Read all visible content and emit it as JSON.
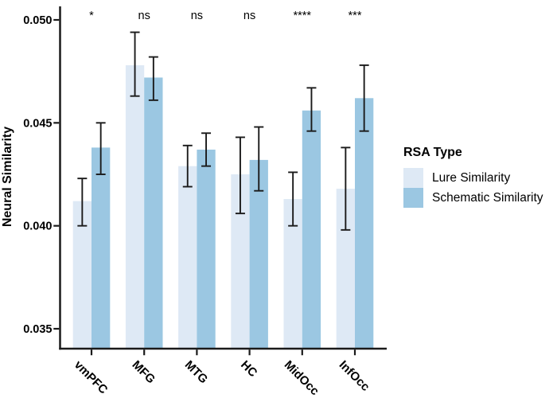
{
  "chart_data": {
    "type": "bar",
    "title": "",
    "xlabel": "",
    "ylabel": "Neural Similarity",
    "categories": [
      "vmPFC",
      "MFG",
      "MTG",
      "HC",
      "MidOcc",
      "InfOcc"
    ],
    "series": [
      {
        "name": "Lure Similarity",
        "color": "#dee9f5",
        "values": [
          0.0412,
          0.0478,
          0.0429,
          0.0425,
          0.0413,
          0.0418
        ],
        "ci_low": [
          0.04,
          0.0463,
          0.0419,
          0.0406,
          0.04,
          0.0398
        ],
        "ci_high": [
          0.0423,
          0.0494,
          0.0439,
          0.0443,
          0.0426,
          0.0438
        ]
      },
      {
        "name": "Schematic Similarity",
        "color": "#9bc7e2",
        "values": [
          0.0438,
          0.0472,
          0.0437,
          0.0432,
          0.0456,
          0.0462
        ],
        "ci_low": [
          0.0425,
          0.0461,
          0.0429,
          0.0417,
          0.0446,
          0.0446
        ],
        "ci_high": [
          0.045,
          0.0482,
          0.0445,
          0.0448,
          0.0467,
          0.0478
        ]
      }
    ],
    "significance": [
      "*",
      "ns",
      "ns",
      "ns",
      "****",
      "***"
    ],
    "yticks": [
      0.05,
      0.045,
      0.04,
      0.035
    ],
    "ylim": [
      0.0341,
      0.0507
    ],
    "grid": false,
    "error_bars": true,
    "bar_baseline": 0.0341,
    "axis_color": "#1a1a1a",
    "legend": {
      "title": "RSA Type",
      "position": "right"
    }
  }
}
